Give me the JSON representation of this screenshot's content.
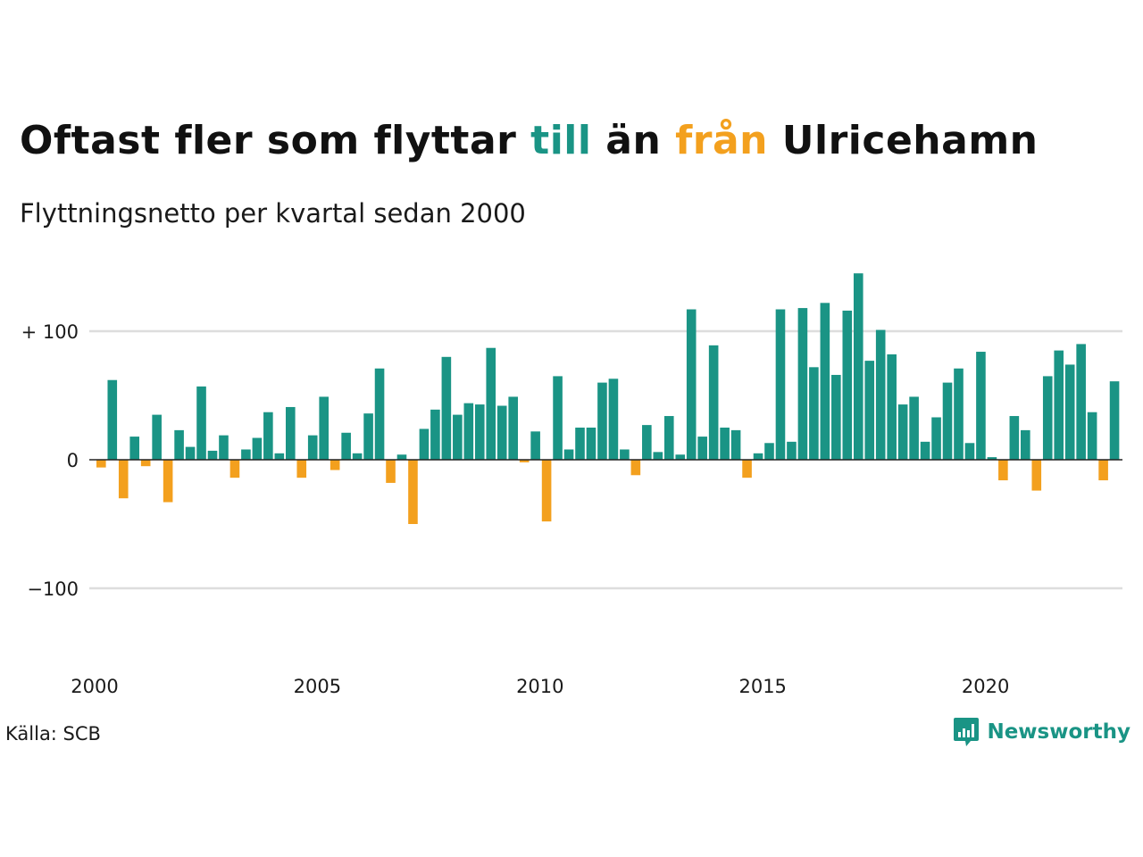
{
  "title": {
    "part1": "Oftast fler som flyttar ",
    "till": "till",
    "part2": " än ",
    "fran": "från",
    "part3": " Ulricehamn"
  },
  "subtitle": "Flyttningsnetto per kvartal sedan 2000",
  "source": "Källa: SCB",
  "brand": "Newsworthy",
  "colors": {
    "positive": "#1a9485",
    "negative": "#f3a01e",
    "grid": "#dddddd",
    "zero": "#222222",
    "text": "#1a1a1a"
  },
  "chart_data": {
    "type": "bar",
    "x_start": "2000-Q1",
    "x_ticks": [
      {
        "year": 2000,
        "label": "2000"
      },
      {
        "year": 2005,
        "label": "2005"
      },
      {
        "year": 2010,
        "label": "2010"
      },
      {
        "year": 2015,
        "label": "2015"
      },
      {
        "year": 2020,
        "label": "2020"
      }
    ],
    "y_ticks": [
      {
        "value": 100,
        "label": "+ 100"
      },
      {
        "value": 0,
        "label": "0"
      },
      {
        "value": -100,
        "label": "−100"
      }
    ],
    "ylim": [
      -150,
      150
    ],
    "grid": true,
    "values": [
      -6,
      62,
      -30,
      18,
      -5,
      35,
      -33,
      23,
      10,
      57,
      7,
      19,
      -14,
      8,
      17,
      37,
      5,
      41,
      -14,
      19,
      49,
      -8,
      21,
      5,
      36,
      71,
      -18,
      4,
      -50,
      24,
      39,
      80,
      35,
      44,
      43,
      87,
      42,
      49,
      -2,
      22,
      -48,
      65,
      8,
      25,
      25,
      60,
      63,
      8,
      -12,
      27,
      6,
      34,
      4,
      117,
      18,
      89,
      25,
      23,
      -14,
      5,
      13,
      117,
      14,
      118,
      72,
      122,
      66,
      116,
      145,
      77,
      101,
      82,
      43,
      49,
      14,
      33,
      60,
      71,
      13,
      84,
      2,
      -16,
      34,
      23,
      -24,
      65,
      85,
      74,
      90,
      37,
      -16,
      61
    ]
  }
}
